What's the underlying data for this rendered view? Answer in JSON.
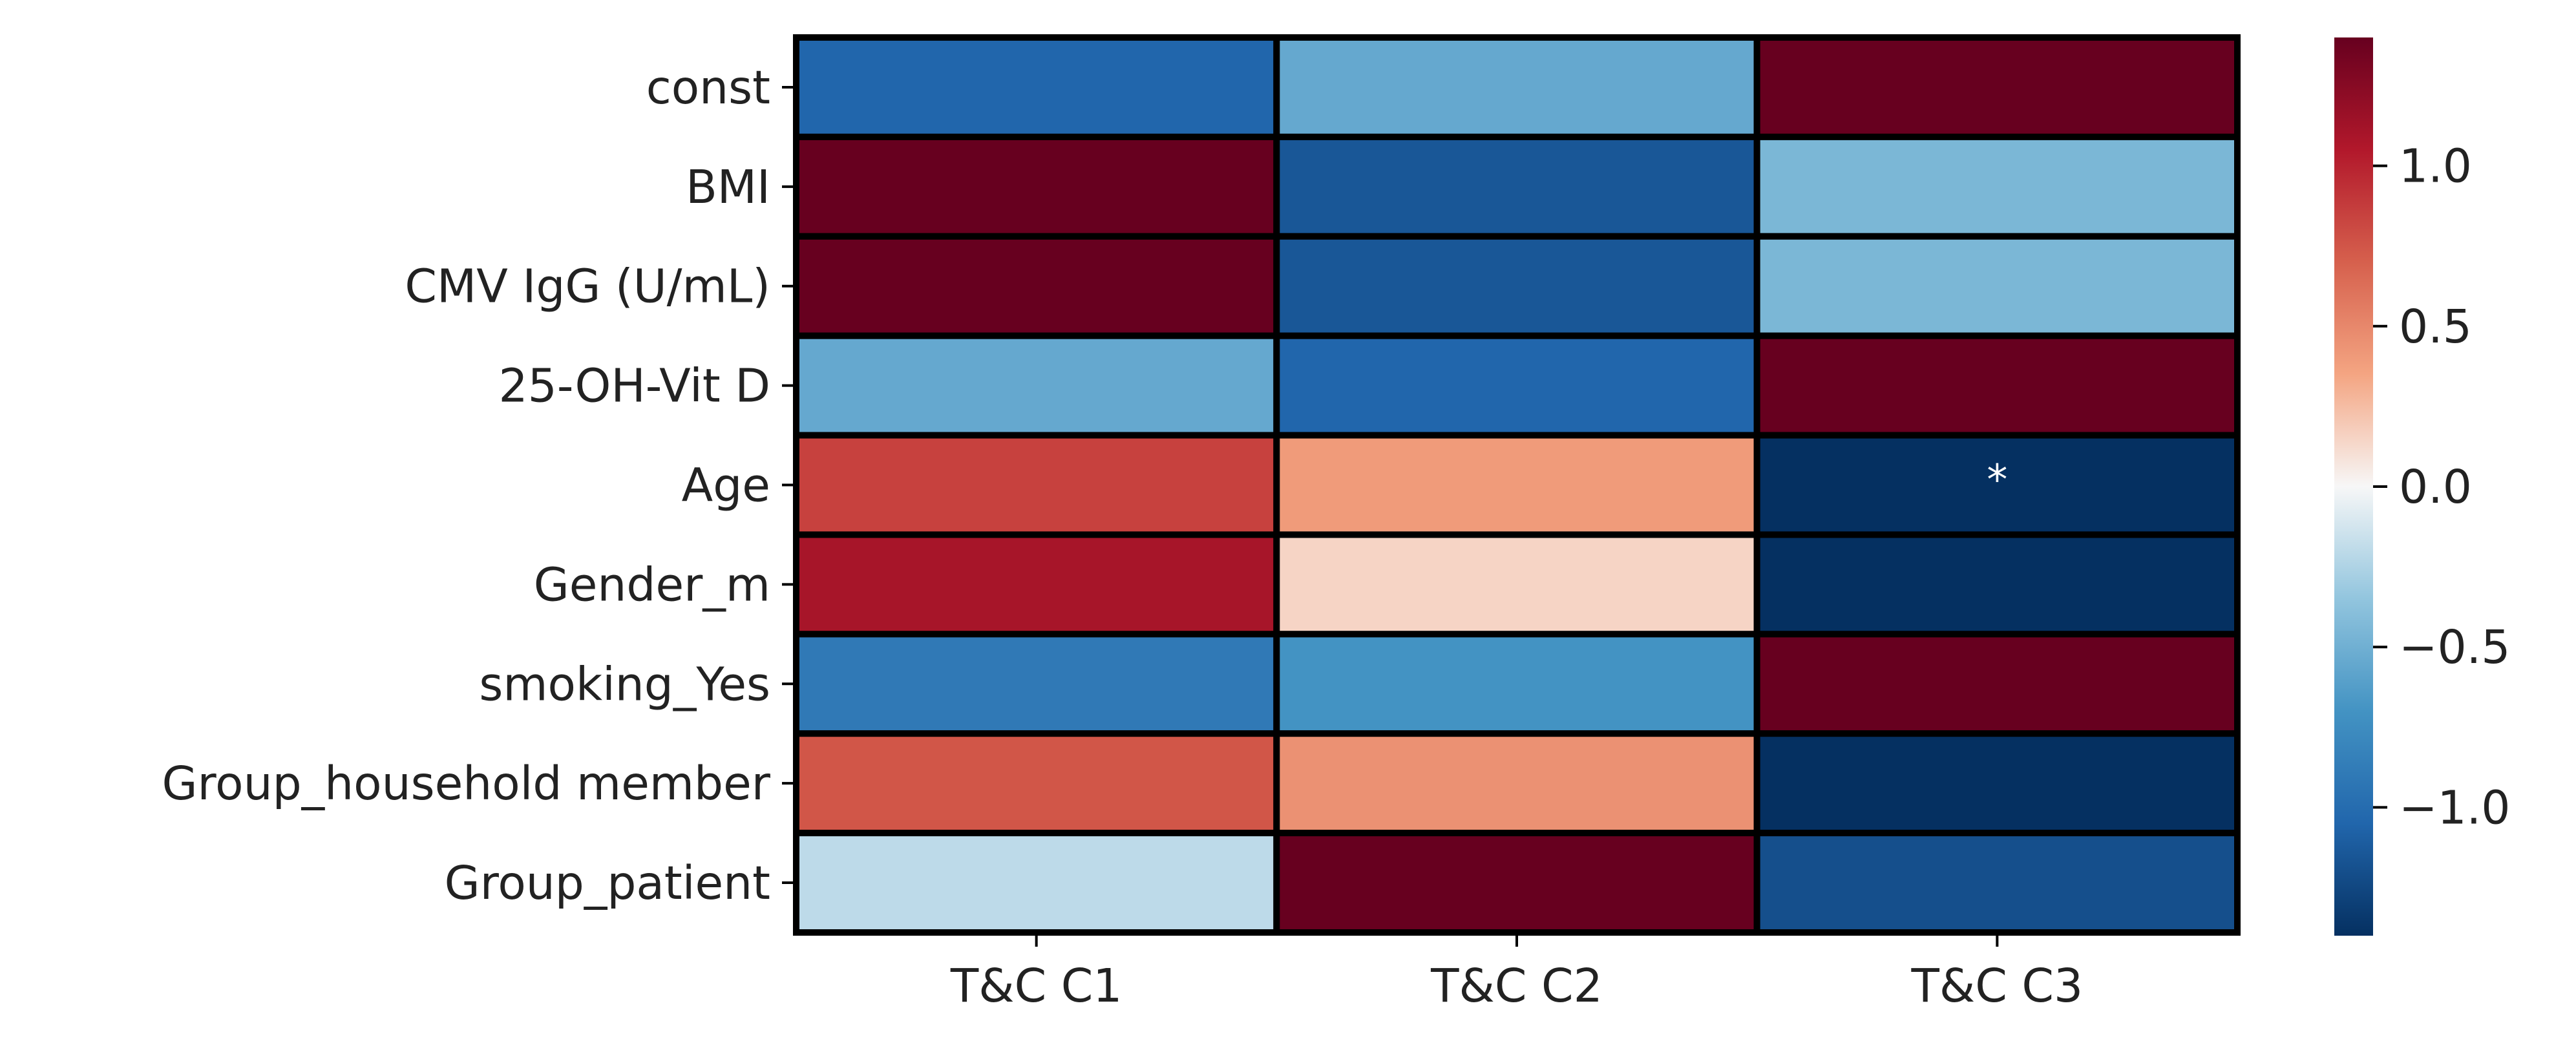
{
  "chart_data": {
    "type": "heatmap",
    "title": "",
    "xlabel": "",
    "ylabel": "",
    "columns": [
      "T&C C1",
      "T&C C2",
      "T&C C3"
    ],
    "rows": [
      "const",
      "BMI",
      "CMV IgG (U/mL)",
      "25-OH-Vit D",
      "Age",
      "Gender_m",
      "smoking_Yes",
      "Group_household member",
      "Group_patient"
    ],
    "values": [
      [
        -1.05,
        -0.55,
        1.5
      ],
      [
        1.45,
        -1.15,
        -0.45
      ],
      [
        1.45,
        -1.15,
        -0.45
      ],
      [
        -0.55,
        -1.05,
        1.5
      ],
      [
        0.85,
        0.4,
        -1.6
      ],
      [
        1.1,
        0.15,
        -1.4
      ],
      [
        -0.9,
        -0.7,
        1.45
      ],
      [
        0.75,
        0.45,
        -1.6
      ],
      [
        -0.2,
        1.5,
        -1.2
      ]
    ],
    "annotations": [
      {
        "row": 4,
        "col": 2,
        "text": "*"
      }
    ],
    "colormap": "RdBu_r",
    "color_range": [
      -1.4,
      1.4
    ],
    "colorbar": {
      "ticks": [
        1.0,
        0.5,
        0.0,
        -0.5,
        -1.0
      ],
      "tick_labels": [
        "1.0",
        "0.5",
        "0.0",
        "−0.5",
        "−1.0"
      ],
      "placement": "right"
    },
    "cell_border_color": "#000000",
    "grid": false
  }
}
